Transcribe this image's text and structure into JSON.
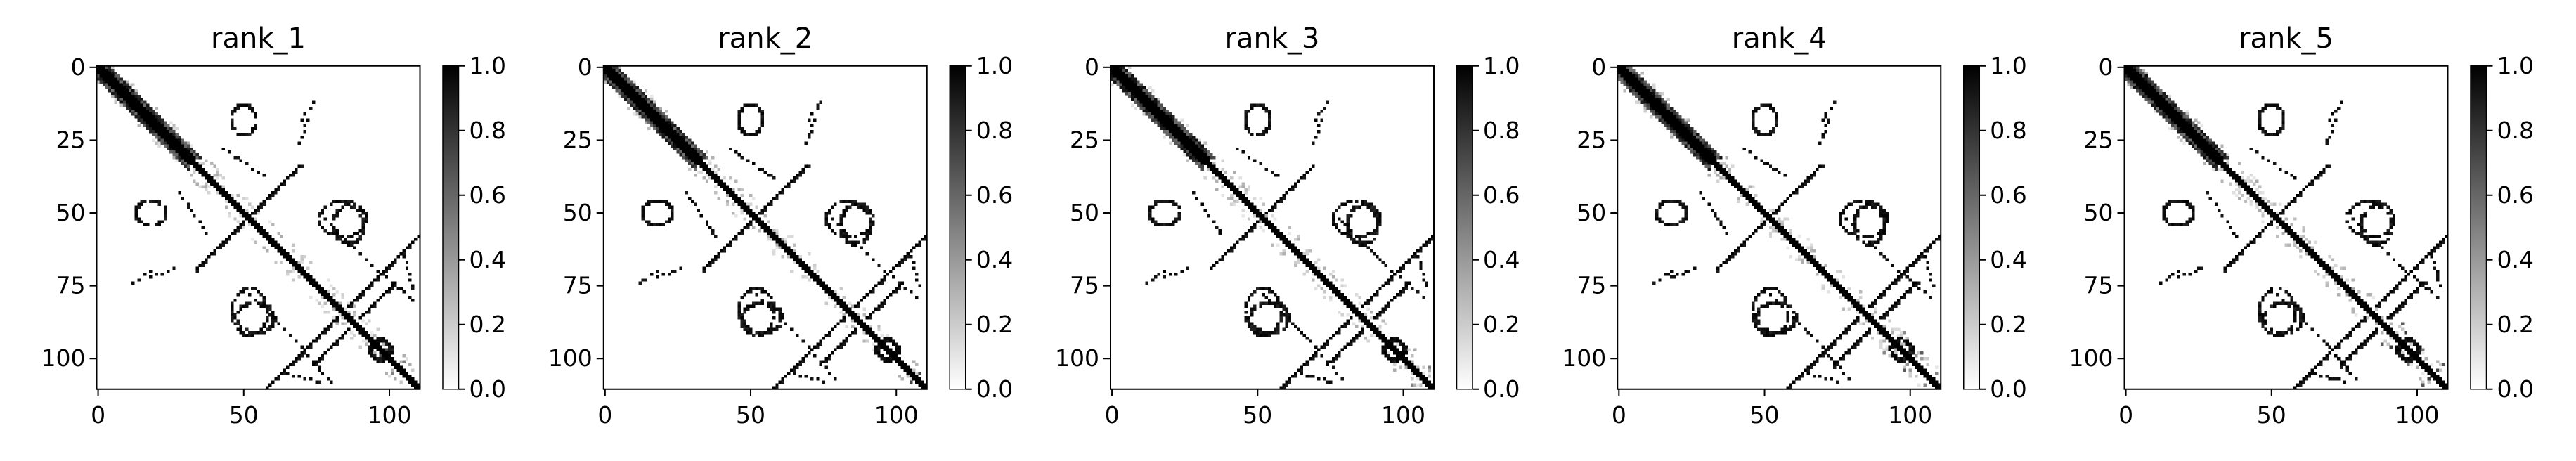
{
  "chart_data": [
    {
      "type": "heatmap",
      "title": "rank_1",
      "seed": 1
    },
    {
      "type": "heatmap",
      "title": "rank_2",
      "seed": 2
    },
    {
      "type": "heatmap",
      "title": "rank_3",
      "seed": 3
    },
    {
      "type": "heatmap",
      "title": "rank_4",
      "seed": 4
    },
    {
      "type": "heatmap",
      "title": "rank_5",
      "seed": 5
    }
  ],
  "shared": {
    "matrix_size": 111,
    "xticks": [
      0,
      50,
      100
    ],
    "yticks": [
      0,
      25,
      50,
      75,
      100
    ],
    "colorbar_ticks": [
      0.0,
      0.2,
      0.4,
      0.6,
      0.8,
      1.0
    ],
    "colorbar_tick_labels": [
      "0.0",
      "0.2",
      "0.4",
      "0.6",
      "0.8",
      "1.0"
    ],
    "vlim": [
      0,
      1
    ],
    "colormap": "Greys",
    "structure": {
      "diagonal_band": [
        [
          0,
          32,
          4
        ],
        [
          32,
          111,
          1
        ]
      ],
      "antidiagonals": [
        [
          34,
          69
        ],
        [
          58,
          110
        ],
        [
          74,
          102
        ]
      ],
      "loops": [
        [
          52,
          84,
          6
        ],
        [
          50,
          18,
          4
        ],
        [
          86,
          54,
          5
        ],
        [
          97,
          97,
          3
        ]
      ],
      "dotted_segments": [
        [
          [
            43,
            28
          ],
          [
            58,
            38
          ]
        ],
        [
          [
            78,
            52
          ],
          [
            96,
            70
          ]
        ],
        [
          [
            18,
            72
          ],
          [
            26,
            69
          ]
        ],
        [
          [
            63,
            105
          ],
          [
            76,
            108
          ]
        ],
        [
          [
            99,
            72
          ],
          [
            108,
            80
          ]
        ],
        [
          [
            70,
            18
          ],
          [
            74,
            12
          ]
        ]
      ]
    }
  }
}
